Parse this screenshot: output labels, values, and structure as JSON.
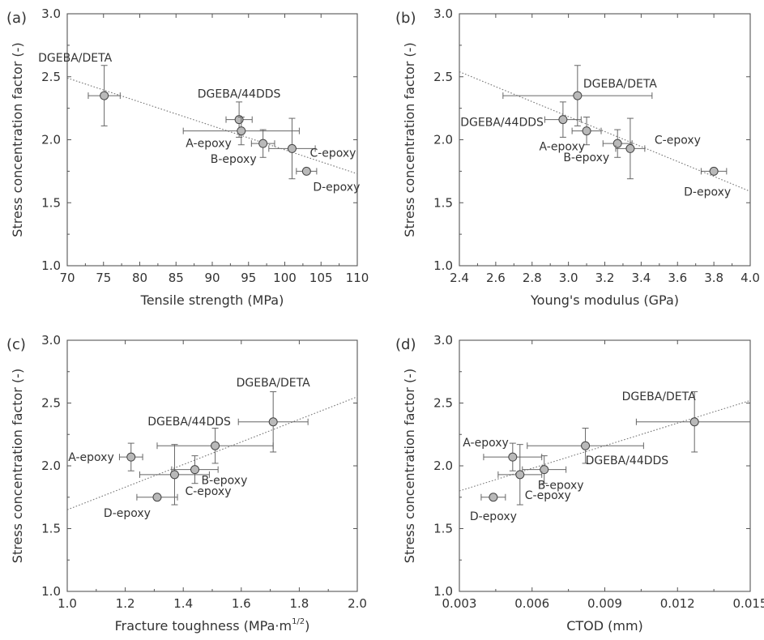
{
  "chart_data": [
    {
      "panel": "(a)",
      "type": "scatter",
      "xlabel": "Tensile strength (MPa)",
      "ylabel": "Stress concentration factor (-)",
      "xlim": [
        70,
        110
      ],
      "ylim": [
        1.0,
        3.0
      ],
      "xticks": [
        "70",
        "75",
        "80",
        "85",
        "90",
        "95",
        "100",
        "105",
        "110"
      ],
      "yticks": [
        "1.0",
        "1.5",
        "2.0",
        "2.5",
        "3.0"
      ],
      "trend": {
        "x": [
          70,
          110
        ],
        "y": [
          2.49,
          1.73
        ]
      },
      "points": [
        {
          "name": "DGEBA/DETA",
          "x": 75.1,
          "y": 2.35,
          "xerr": 2.2,
          "yerr": 0.24
        },
        {
          "name": "DGEBA/44DDS",
          "x": 93.7,
          "y": 2.16,
          "xerr": 1.8,
          "yerr": 0.14
        },
        {
          "name": "A-epoxy",
          "x": 94.0,
          "y": 2.07,
          "xerr": 8.0,
          "yerr": 0.11
        },
        {
          "name": "B-epoxy",
          "x": 97.0,
          "y": 1.97,
          "xerr": 1.6,
          "yerr": 0.11
        },
        {
          "name": "C-epoxy",
          "x": 101.0,
          "y": 1.93,
          "xerr": 3.2,
          "yerr": 0.24
        },
        {
          "name": "D-epoxy",
          "x": 103.0,
          "y": 1.75,
          "xerr": 1.4,
          "yerr": 0.02
        }
      ]
    },
    {
      "panel": "(b)",
      "type": "scatter",
      "xlabel": "Young's modulus (GPa)",
      "ylabel": "Stress concentration factor (-)",
      "xlim": [
        2.4,
        4.0
      ],
      "ylim": [
        1.0,
        3.0
      ],
      "xticks": [
        "2.4",
        "2.6",
        "2.8",
        "3.0",
        "3.2",
        "3.4",
        "3.6",
        "3.8",
        "4.0"
      ],
      "yticks": [
        "1.0",
        "1.5",
        "2.0",
        "2.5",
        "3.0"
      ],
      "trend": {
        "x": [
          2.4,
          4.0
        ],
        "y": [
          2.54,
          1.59
        ]
      },
      "points": [
        {
          "name": "DGEBA/DETA",
          "x": 3.05,
          "y": 2.35,
          "xerr": 0.41,
          "yerr": 0.24
        },
        {
          "name": "DGEBA/44DDS",
          "x": 2.97,
          "y": 2.16,
          "xerr": 0.1,
          "yerr": 0.14
        },
        {
          "name": "A-epoxy",
          "x": 3.1,
          "y": 2.07,
          "xerr": 0.08,
          "yerr": 0.11
        },
        {
          "name": "B-epoxy",
          "x": 3.27,
          "y": 1.97,
          "xerr": 0.08,
          "yerr": 0.11
        },
        {
          "name": "C-epoxy",
          "x": 3.34,
          "y": 1.93,
          "xerr": 0.08,
          "yerr": 0.24
        },
        {
          "name": "D-epoxy",
          "x": 3.8,
          "y": 1.75,
          "xerr": 0.07,
          "yerr": 0.02
        }
      ]
    },
    {
      "panel": "(c)",
      "type": "scatter",
      "xlabel": "Fracture toughness (MPa·m",
      "xlabel_sup": "1/2",
      "xlabel_end": ")",
      "ylabel": "Stress concentration factor (-)",
      "xlim": [
        1.0,
        2.0
      ],
      "ylim": [
        1.0,
        3.0
      ],
      "xticks": [
        "1.0",
        "1.2",
        "1.4",
        "1.6",
        "1.8",
        "2.0"
      ],
      "yticks": [
        "1.0",
        "1.5",
        "2.0",
        "2.5",
        "3.0"
      ],
      "trend": {
        "x": [
          1.0,
          2.0
        ],
        "y": [
          1.65,
          2.55
        ]
      },
      "points": [
        {
          "name": "DGEBA/DETA",
          "x": 1.71,
          "y": 2.35,
          "xerr": 0.12,
          "yerr": 0.24
        },
        {
          "name": "DGEBA/44DDS",
          "x": 1.51,
          "y": 2.16,
          "xerr": 0.2,
          "yerr": 0.14
        },
        {
          "name": "A-epoxy",
          "x": 1.22,
          "y": 2.07,
          "xerr": 0.04,
          "yerr": 0.11
        },
        {
          "name": "B-epoxy",
          "x": 1.44,
          "y": 1.97,
          "xerr": 0.08,
          "yerr": 0.11
        },
        {
          "name": "C-epoxy",
          "x": 1.37,
          "y": 1.93,
          "xerr": 0.12,
          "yerr": 0.24
        },
        {
          "name": "D-epoxy",
          "x": 1.31,
          "y": 1.75,
          "xerr": 0.07,
          "yerr": 0.02
        }
      ]
    },
    {
      "panel": "(d)",
      "type": "scatter",
      "xlabel": "CTOD (mm)",
      "ylabel": "Stress concentration factor (-)",
      "xlim": [
        0.003,
        0.015
      ],
      "ylim": [
        1.0,
        3.0
      ],
      "xticks": [
        "0.003",
        "0.006",
        "0.009",
        "0.012",
        "0.015"
      ],
      "yticks": [
        "1.0",
        "1.5",
        "2.0",
        "2.5",
        "3.0"
      ],
      "trend": {
        "x": [
          0.003,
          0.015
        ],
        "y": [
          1.8,
          2.52
        ]
      },
      "points": [
        {
          "name": "DGEBA/DETA",
          "x": 0.0127,
          "y": 2.35,
          "xerr": 0.0024,
          "yerr": 0.24
        },
        {
          "name": "DGEBA/44DDS",
          "x": 0.0082,
          "y": 2.16,
          "xerr": 0.0024,
          "yerr": 0.14
        },
        {
          "name": "A-epoxy",
          "x": 0.0052,
          "y": 2.07,
          "xerr": 0.0012,
          "yerr": 0.11
        },
        {
          "name": "B-epoxy",
          "x": 0.0065,
          "y": 1.97,
          "xerr": 0.0009,
          "yerr": 0.11
        },
        {
          "name": "C-epoxy",
          "x": 0.0055,
          "y": 1.93,
          "xerr": 0.0009,
          "yerr": 0.24
        },
        {
          "name": "D-epoxy",
          "x": 0.0044,
          "y": 1.75,
          "xerr": 0.0005,
          "yerr": 0.02
        }
      ]
    }
  ]
}
